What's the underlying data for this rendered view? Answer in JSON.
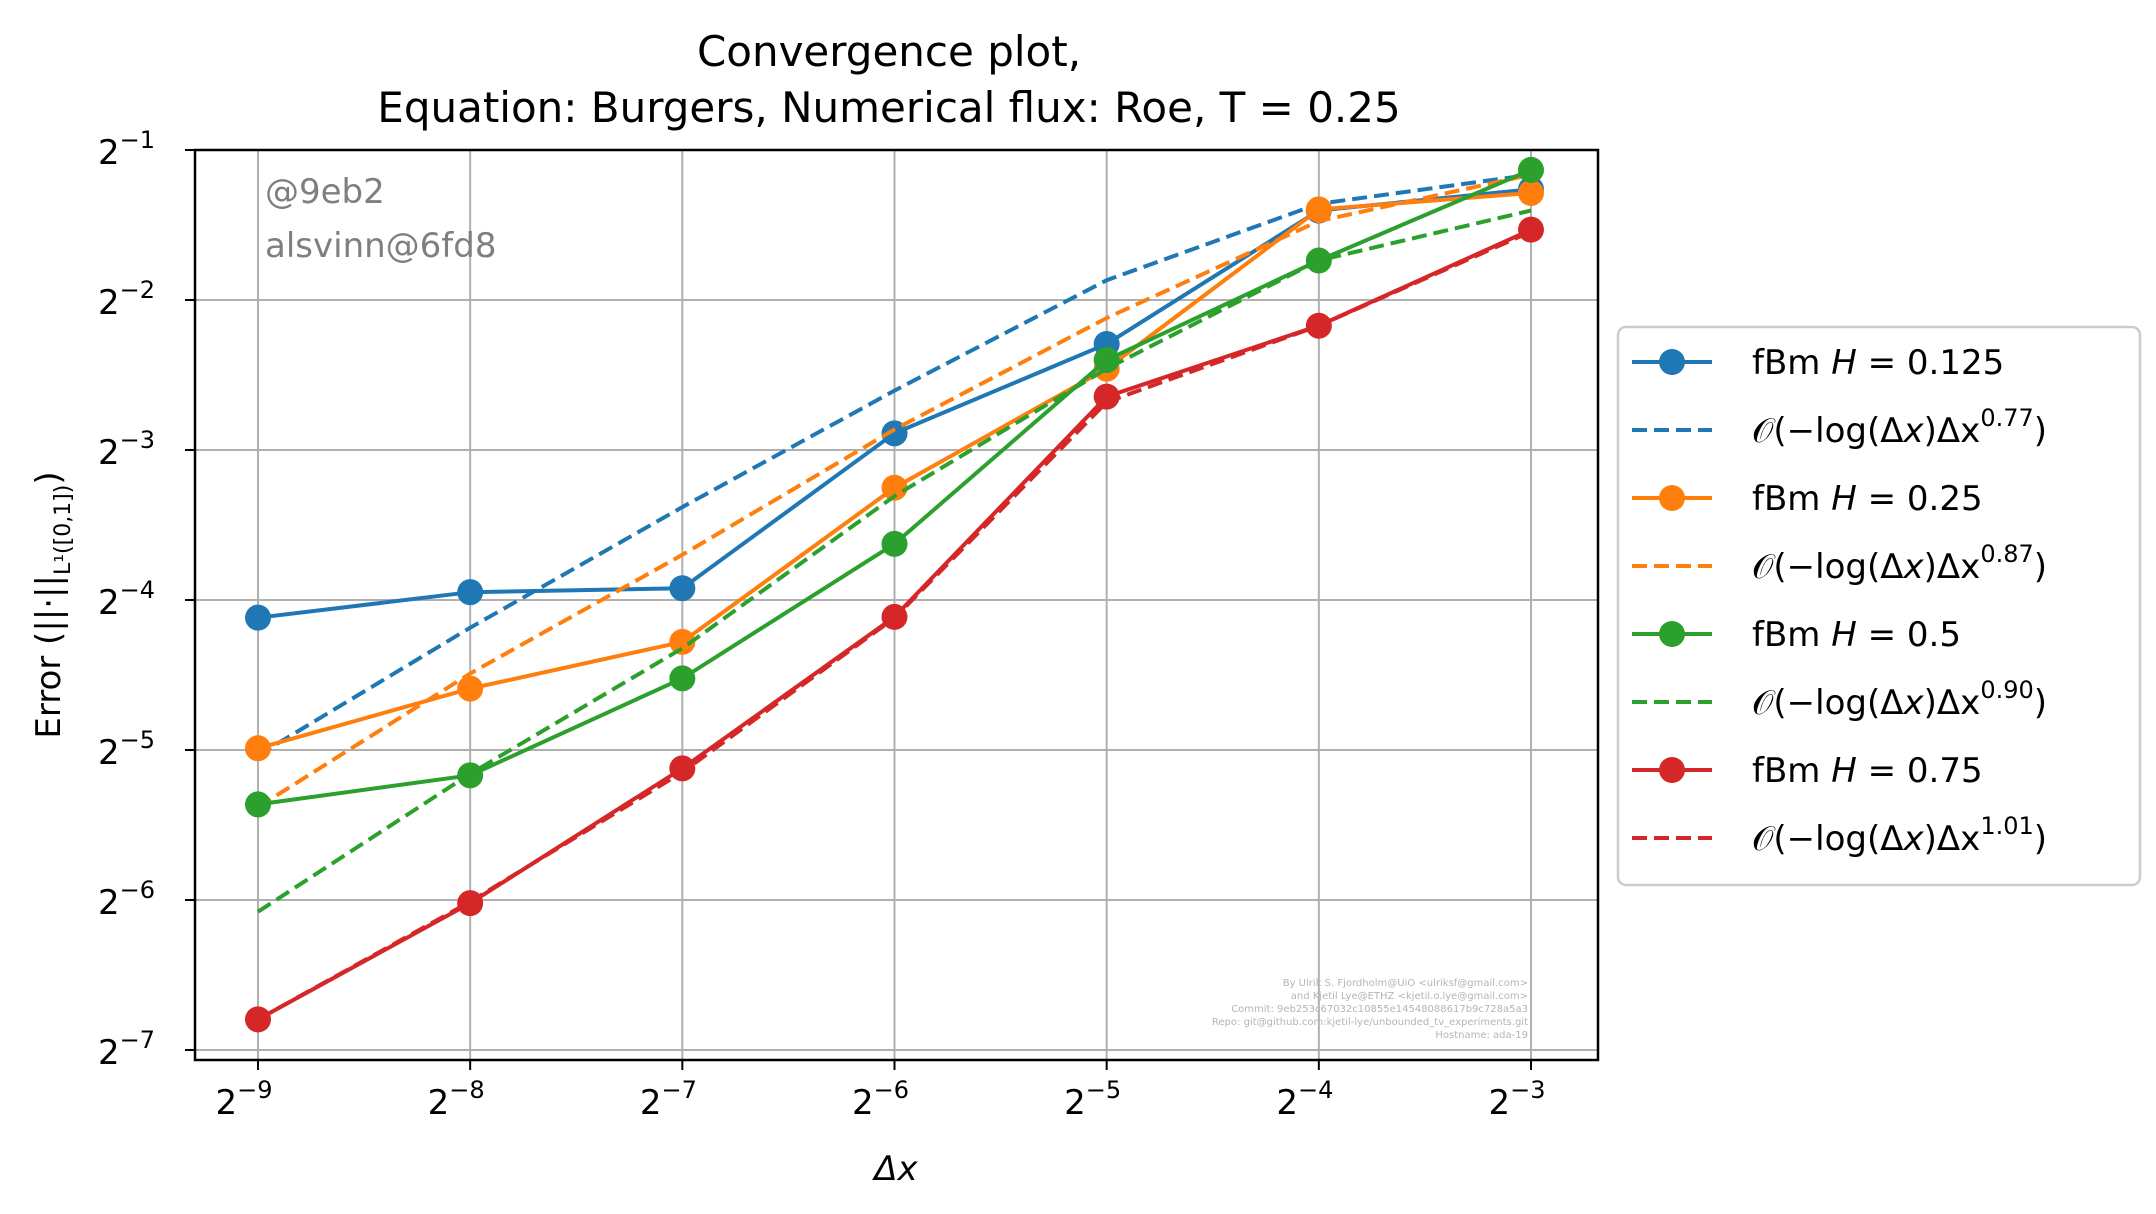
{
  "chart_data": {
    "type": "line",
    "title_line1": "Convergence plot,",
    "title_line2": "Equation: Burgers, Numerical flux: Roe, T = 0.25",
    "xlabel": "Δx",
    "ylabel_prefix": "Error (||·||",
    "ylabel_sub": "L¹([0,1])",
    "ylabel_suffix": ")",
    "x_scale": "log2",
    "y_scale": "log2",
    "x": [
      0.001953125,
      0.00390625,
      0.0078125,
      0.015625,
      0.03125,
      0.0625,
      0.125
    ],
    "x_ticks": [
      {
        "base": "2",
        "exp": "−9"
      },
      {
        "base": "2",
        "exp": "−8"
      },
      {
        "base": "2",
        "exp": "−7"
      },
      {
        "base": "2",
        "exp": "−6"
      },
      {
        "base": "2",
        "exp": "−5"
      },
      {
        "base": "2",
        "exp": "−4"
      },
      {
        "base": "2",
        "exp": "−3"
      }
    ],
    "y_ticks": [
      {
        "base": "2",
        "exp": "−1"
      },
      {
        "base": "2",
        "exp": "−2"
      },
      {
        "base": "2",
        "exp": "−3"
      },
      {
        "base": "2",
        "exp": "−4"
      },
      {
        "base": "2",
        "exp": "−5"
      },
      {
        "base": "2",
        "exp": "−6"
      },
      {
        "base": "2",
        "exp": "−7"
      }
    ],
    "grid": true,
    "legend_position": "right outside",
    "series": [
      {
        "name": "fBm H = 0.125",
        "color": "#1f77b4",
        "style": "solid-marker",
        "values": [
          0.0576,
          0.0648,
          0.066,
          0.135,
          0.204,
          0.378,
          0.417
        ]
      },
      {
        "name": "𝒪(−log(Δx)Δx^0.77)",
        "color": "#1f77b4",
        "style": "dashed",
        "values": [
          0.0305,
          0.055,
          0.096,
          0.1645,
          0.274,
          0.39,
          0.446
        ]
      },
      {
        "name": "fBm H = 0.25",
        "color": "#ff7f0e",
        "style": "solid-marker",
        "values": [
          0.0315,
          0.0415,
          0.0515,
          0.105,
          0.182,
          0.38,
          0.41
        ]
      },
      {
        "name": "𝒪(−log(Δx)Δx^0.87)",
        "color": "#ff7f0e",
        "style": "dashed",
        "values": [
          0.024,
          0.0445,
          0.077,
          0.1375,
          0.23,
          0.36,
          0.446
        ]
      },
      {
        "name": "fBm H = 0.5",
        "color": "#2ca02c",
        "style": "solid-marker",
        "values": [
          0.0243,
          0.0278,
          0.0435,
          0.081,
          0.1895,
          0.3,
          0.456
        ]
      },
      {
        "name": "𝒪(−log(Δx)Δx^0.90)",
        "color": "#2ca02c",
        "style": "dashed",
        "values": [
          0.0148,
          0.028,
          0.05,
          0.101,
          0.182,
          0.3,
          0.378
        ]
      },
      {
        "name": "fBm H = 0.75",
        "color": "#d62728",
        "style": "solid-marker",
        "values": [
          0.009,
          0.0154,
          0.0287,
          0.0578,
          0.16,
          0.222,
          0.346
        ]
      },
      {
        "name": "𝒪(−log(Δx)Δx^1.01)",
        "color": "#d62728",
        "style": "dashed",
        "values": [
          0.009,
          0.0155,
          0.0282,
          0.0575,
          0.156,
          0.222,
          0.343
        ]
      }
    ]
  },
  "legend": [
    {
      "prefix": "fBm ",
      "var": "H",
      "rest": " = 0.125",
      "sup": ""
    },
    {
      "prefix": "𝒪(−log(Δ",
      "var": "x",
      "rest": ")Δx",
      "sup": "0.77",
      "close": ")"
    },
    {
      "prefix": "fBm ",
      "var": "H",
      "rest": " = 0.25",
      "sup": ""
    },
    {
      "prefix": "𝒪(−log(Δ",
      "var": "x",
      "rest": ")Δx",
      "sup": "0.87",
      "close": ")"
    },
    {
      "prefix": "fBm ",
      "var": "H",
      "rest": " = 0.5",
      "sup": ""
    },
    {
      "prefix": "𝒪(−log(Δ",
      "var": "x",
      "rest": ")Δx",
      "sup": "0.90",
      "close": ")"
    },
    {
      "prefix": "fBm ",
      "var": "H",
      "rest": " = 0.75",
      "sup": ""
    },
    {
      "prefix": "𝒪(−log(Δ",
      "var": "x",
      "rest": ")Δx",
      "sup": "1.01",
      "close": ")"
    }
  ],
  "watermark": {
    "line1": "@9eb2",
    "line2": "alsvinn@6fd8"
  },
  "credits": [
    "By Ulrik S. Fjordholm@UiO <ulriksf@gmail.com>",
    "and Kjetil Lye@ETHZ <kjetil.o.lye@gmail.com>",
    "Commit: 9eb253c67032c10855e14548088617b9c728a5a3",
    "Repo: git@github.com:kjetil-lye/unbounded_tv_experiments.git",
    "Hostname: ada-19"
  ]
}
